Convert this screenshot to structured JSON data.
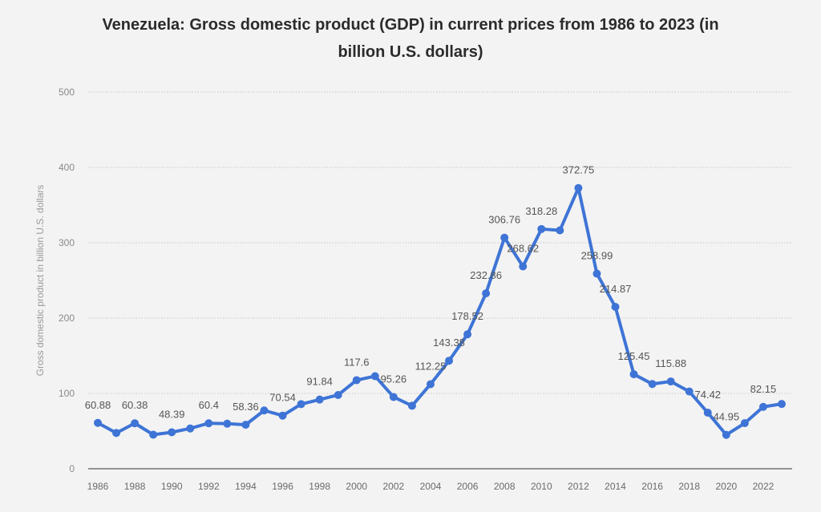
{
  "chart_data": {
    "type": "line",
    "title_line1": "Venezuela: Gross domestic product (GDP) in current prices from 1986 to 2023 (in",
    "title_line2": "billion U.S. dollars)",
    "xlabel": "",
    "ylabel": "Gross domestic product in billion U.S. dollars",
    "ylim": [
      0,
      500
    ],
    "yticks": [
      0,
      100,
      200,
      300,
      400,
      500
    ],
    "xticks": [
      1986,
      1988,
      1990,
      1992,
      1994,
      1996,
      1998,
      2000,
      2002,
      2004,
      2006,
      2008,
      2010,
      2012,
      2014,
      2016,
      2018,
      2020,
      2022
    ],
    "grid": true,
    "line_color": "#3e74d6",
    "x": [
      1986,
      1987,
      1988,
      1989,
      1990,
      1991,
      1992,
      1993,
      1994,
      1995,
      1996,
      1997,
      1998,
      1999,
      2000,
      2001,
      2002,
      2003,
      2004,
      2005,
      2006,
      2007,
      2008,
      2009,
      2010,
      2011,
      2012,
      2013,
      2014,
      2015,
      2016,
      2017,
      2018,
      2019,
      2020,
      2021,
      2022,
      2023
    ],
    "values": [
      60.88,
      47.5,
      60.38,
      45.2,
      48.39,
      53.5,
      60.4,
      59.8,
      58.36,
      77.4,
      70.54,
      85.8,
      91.84,
      97.9,
      117.6,
      122.9,
      95.26,
      83.6,
      112.25,
      143.38,
      178.52,
      232.86,
      306.76,
      268.62,
      318.28,
      316.5,
      372.75,
      258.99,
      214.87,
      125.45,
      112.5,
      115.88,
      102.5,
      74.42,
      44.95,
      60.5,
      82.15,
      86.0
    ],
    "data_labels": [
      {
        "year": 1986,
        "text": "60.88"
      },
      {
        "year": 1988,
        "text": "60.38"
      },
      {
        "year": 1990,
        "text": "48.39"
      },
      {
        "year": 1992,
        "text": "60.4"
      },
      {
        "year": 1994,
        "text": "58.36"
      },
      {
        "year": 1996,
        "text": "70.54"
      },
      {
        "year": 1998,
        "text": "91.84"
      },
      {
        "year": 2000,
        "text": "117.6"
      },
      {
        "year": 2002,
        "text": "95.26"
      },
      {
        "year": 2004,
        "text": "112.25"
      },
      {
        "year": 2005,
        "text": "143.38"
      },
      {
        "year": 2006,
        "text": "178.52"
      },
      {
        "year": 2007,
        "text": "232.86"
      },
      {
        "year": 2008,
        "text": "306.76"
      },
      {
        "year": 2009,
        "text": "268.62"
      },
      {
        "year": 2010,
        "text": "318.28"
      },
      {
        "year": 2012,
        "text": "372.75"
      },
      {
        "year": 2013,
        "text": "258.99"
      },
      {
        "year": 2014,
        "text": "214.87"
      },
      {
        "year": 2015,
        "text": "125.45"
      },
      {
        "year": 2017,
        "text": "115.88"
      },
      {
        "year": 2019,
        "text": "74.42"
      },
      {
        "year": 2020,
        "text": "44.95"
      },
      {
        "year": 2022,
        "text": "82.15"
      }
    ]
  }
}
